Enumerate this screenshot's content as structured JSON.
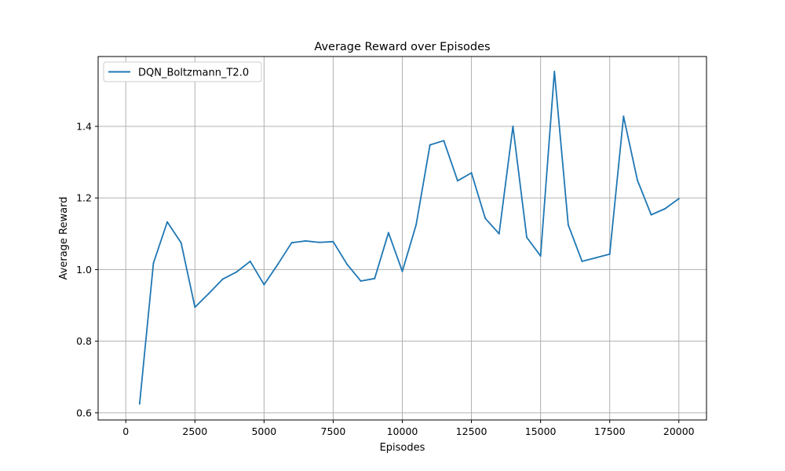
{
  "chart_data": {
    "type": "line",
    "title": "Average Reward over Episodes",
    "xlabel": "Episodes",
    "ylabel": "Average Reward",
    "xlim": [
      -1000,
      21000
    ],
    "ylim": [
      0.58,
      1.595
    ],
    "x_ticks": [
      0,
      2500,
      5000,
      7500,
      10000,
      12500,
      15000,
      17500,
      20000
    ],
    "y_ticks": [
      0.6,
      0.8,
      1.0,
      1.2,
      1.4
    ],
    "x_tick_labels": [
      "0",
      "2500",
      "5000",
      "7500",
      "10000",
      "12500",
      "15000",
      "17500",
      "20000"
    ],
    "y_tick_labels": [
      "0.6",
      "0.8",
      "1.0",
      "1.2",
      "1.4"
    ],
    "grid": true,
    "legend_position": "top-left",
    "series": [
      {
        "name": "DQN_Boltzmann_T2.0",
        "color": "#1f77b4",
        "x": [
          500,
          1000,
          1500,
          2000,
          2500,
          3000,
          3500,
          4000,
          4500,
          5000,
          5500,
          6000,
          6500,
          7000,
          7500,
          8000,
          8500,
          9000,
          9500,
          10000,
          10500,
          11000,
          11500,
          12000,
          12500,
          13000,
          13500,
          14000,
          14500,
          15000,
          15500,
          16000,
          16500,
          17000,
          17500,
          18000,
          18500,
          19000,
          19500,
          20000
        ],
        "y": [
          0.625,
          1.018,
          1.133,
          1.075,
          0.895,
          0.933,
          0.973,
          0.993,
          1.023,
          0.958,
          1.015,
          1.075,
          1.08,
          1.076,
          1.078,
          1.015,
          0.968,
          0.975,
          1.103,
          0.995,
          1.125,
          1.348,
          1.36,
          1.248,
          1.27,
          1.143,
          1.1,
          1.4,
          1.09,
          1.038,
          1.553,
          1.125,
          1.023,
          1.033,
          1.043,
          1.428,
          1.25,
          1.153,
          1.17,
          1.198
        ]
      }
    ]
  }
}
